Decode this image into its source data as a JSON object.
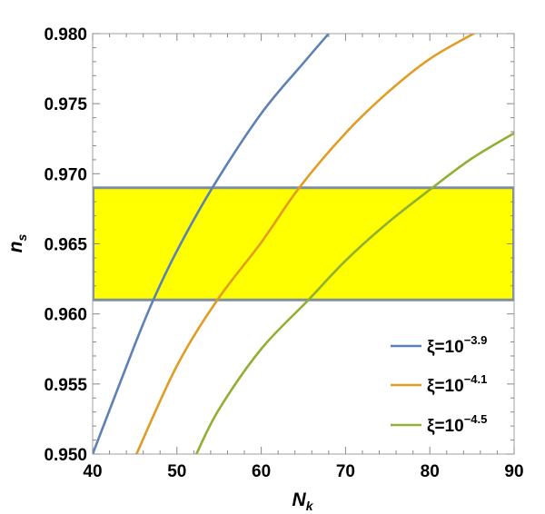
{
  "chart_data": {
    "type": "line",
    "xlabel": "N",
    "xlabel_sub": "k",
    "ylabel": "n",
    "ylabel_sub": "s",
    "xlim": [
      40,
      90
    ],
    "ylim": [
      0.95,
      0.98
    ],
    "x_ticks": [
      40,
      50,
      60,
      70,
      80,
      90
    ],
    "x_tick_labels": [
      "40",
      "50",
      "60",
      "70",
      "80",
      "90"
    ],
    "y_ticks": [
      0.95,
      0.955,
      0.96,
      0.965,
      0.97,
      0.975,
      0.98
    ],
    "y_tick_labels": [
      "0.950",
      "0.955",
      "0.960",
      "0.965",
      "0.970",
      "0.975",
      "0.980"
    ],
    "grid": false,
    "legend_placement": "bottom-right",
    "band": {
      "y_low": 0.961,
      "y_high": 0.969,
      "fill": "#ffff00",
      "edge": "#7f8fa0"
    },
    "series": [
      {
        "name": "ξ=10",
        "exponent": "−3.9",
        "color": "#5e81b5",
        "x": [
          40,
          45,
          47.2,
          50,
          54.2,
          60,
          65,
          68
        ],
        "y": [
          0.95,
          0.9578,
          0.961,
          0.9645,
          0.969,
          0.9743,
          0.9779,
          0.98
        ]
      },
      {
        "name": "ξ=10",
        "exponent": "−4.1",
        "color": "#e19c24",
        "x": [
          45.2,
          50,
          54.8,
          60,
          64.5,
          70,
          75,
          80,
          85.2
        ],
        "y": [
          0.95,
          0.9563,
          0.961,
          0.9651,
          0.969,
          0.9729,
          0.9758,
          0.9782,
          0.98
        ]
      },
      {
        "name": "ξ=10",
        "exponent": "−4.5",
        "color": "#8fb032",
        "x": [
          52.3,
          55,
          60,
          65.6,
          70,
          75,
          80.3,
          85,
          90
        ],
        "y": [
          0.95,
          0.9532,
          0.9575,
          0.961,
          0.9638,
          0.9665,
          0.969,
          0.9711,
          0.9729
        ]
      }
    ]
  }
}
